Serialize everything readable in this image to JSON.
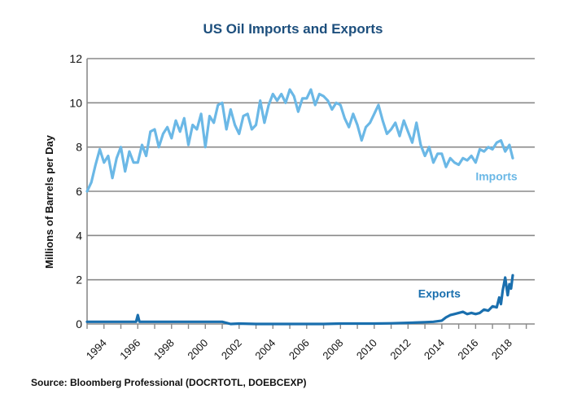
{
  "chart_data": {
    "type": "line",
    "title": "US Oil Imports and Exports",
    "xlabel": "",
    "ylabel": "Millions of Barrels per Day",
    "xlim": [
      1993.0,
      2019.5
    ],
    "ylim": [
      0,
      12
    ],
    "yticks": [
      0,
      2,
      4,
      6,
      8,
      10,
      12
    ],
    "xticks": [
      "1994",
      "1996",
      "1998",
      "2000",
      "2002",
      "2004",
      "2006",
      "2008",
      "2010",
      "2012",
      "2014",
      "2016",
      "2018"
    ],
    "grid": true,
    "series": [
      {
        "name": "Imports",
        "color": "#6bb8e6",
        "x": [
          1993.0,
          1993.25,
          1993.5,
          1993.75,
          1994.0,
          1994.25,
          1994.5,
          1994.75,
          1995.0,
          1995.25,
          1995.5,
          1995.75,
          1996.0,
          1996.25,
          1996.5,
          1996.75,
          1997.0,
          1997.25,
          1997.5,
          1997.75,
          1998.0,
          1998.25,
          1998.5,
          1998.75,
          1999.0,
          1999.25,
          1999.5,
          1999.75,
          2000.0,
          2000.25,
          2000.5,
          2000.75,
          2001.0,
          2001.25,
          2001.5,
          2001.75,
          2002.0,
          2002.25,
          2002.5,
          2002.75,
          2003.0,
          2003.25,
          2003.5,
          2003.75,
          2004.0,
          2004.25,
          2004.5,
          2004.75,
          2005.0,
          2005.25,
          2005.5,
          2005.75,
          2006.0,
          2006.25,
          2006.5,
          2006.75,
          2007.0,
          2007.25,
          2007.5,
          2007.75,
          2008.0,
          2008.25,
          2008.5,
          2008.75,
          2009.0,
          2009.25,
          2009.5,
          2009.75,
          2010.0,
          2010.25,
          2010.5,
          2010.75,
          2011.0,
          2011.25,
          2011.5,
          2011.75,
          2012.0,
          2012.25,
          2012.5,
          2012.75,
          2013.0,
          2013.25,
          2013.5,
          2013.75,
          2014.0,
          2014.25,
          2014.5,
          2014.75,
          2015.0,
          2015.25,
          2015.5,
          2015.75,
          2016.0,
          2016.25,
          2016.5,
          2016.75,
          2017.0,
          2017.25,
          2017.5,
          2017.75,
          2018.0,
          2018.2
        ],
        "values": [
          6.0,
          6.4,
          7.2,
          7.9,
          7.3,
          7.6,
          6.6,
          7.5,
          8.0,
          6.9,
          7.8,
          7.3,
          7.3,
          8.1,
          7.6,
          8.7,
          8.8,
          8.0,
          8.6,
          8.9,
          8.4,
          9.2,
          8.7,
          9.3,
          8.1,
          9.0,
          8.8,
          9.5,
          8.0,
          9.4,
          9.1,
          9.9,
          10.0,
          8.8,
          9.7,
          9.0,
          8.6,
          9.4,
          9.5,
          8.8,
          9.0,
          10.1,
          9.1,
          9.9,
          10.4,
          10.1,
          10.4,
          10.0,
          10.6,
          10.3,
          9.6,
          10.2,
          10.2,
          10.6,
          9.9,
          10.4,
          10.3,
          10.1,
          9.7,
          10.0,
          9.9,
          9.3,
          8.9,
          9.5,
          9.0,
          8.3,
          8.9,
          9.1,
          9.5,
          9.9,
          9.2,
          8.6,
          8.8,
          9.1,
          8.5,
          9.2,
          8.7,
          8.2,
          9.1,
          8.1,
          7.6,
          8.0,
          7.3,
          7.7,
          7.7,
          7.1,
          7.5,
          7.3,
          7.2,
          7.5,
          7.4,
          7.6,
          7.3,
          7.9,
          7.8,
          8.0,
          7.9,
          8.2,
          8.3,
          7.8,
          8.1,
          7.5
        ]
      },
      {
        "name": "Exports",
        "color": "#1a6fae",
        "x": [
          1993.0,
          1993.5,
          1994.0,
          1994.5,
          1995.0,
          1995.5,
          1995.9,
          1996.0,
          1996.1,
          1996.5,
          1997.0,
          1997.5,
          1998.0,
          1998.5,
          1999.0,
          1999.5,
          2000.0,
          2000.5,
          2001.0,
          2001.5,
          2002.0,
          2003.0,
          2004.0,
          2005.0,
          2006.0,
          2007.0,
          2008.0,
          2009.0,
          2010.0,
          2011.0,
          2012.0,
          2013.0,
          2013.5,
          2014.0,
          2014.25,
          2014.5,
          2014.75,
          2015.0,
          2015.25,
          2015.5,
          2015.75,
          2016.0,
          2016.25,
          2016.5,
          2016.75,
          2017.0,
          2017.25,
          2017.4,
          2017.5,
          2017.6,
          2017.75,
          2017.9,
          2018.0,
          2018.1,
          2018.2
        ],
        "values": [
          0.1,
          0.1,
          0.1,
          0.1,
          0.1,
          0.1,
          0.1,
          0.4,
          0.1,
          0.1,
          0.1,
          0.1,
          0.1,
          0.1,
          0.1,
          0.1,
          0.1,
          0.1,
          0.1,
          0.0,
          0.02,
          0.0,
          0.0,
          0.0,
          0.0,
          0.0,
          0.02,
          0.02,
          0.02,
          0.03,
          0.05,
          0.08,
          0.1,
          0.15,
          0.3,
          0.4,
          0.45,
          0.5,
          0.55,
          0.45,
          0.5,
          0.45,
          0.5,
          0.65,
          0.6,
          0.8,
          0.75,
          1.2,
          0.9,
          1.5,
          2.1,
          1.3,
          1.8,
          1.6,
          2.2
        ]
      }
    ],
    "annotations": [
      {
        "text": "Imports",
        "x": 2016.0,
        "y": 6.5
      },
      {
        "text": "Exports",
        "x": 2012.6,
        "y": 1.2
      }
    ],
    "source": "Source:  Bloomberg Professional (DOCRTOTL, DOEBCEXP)"
  }
}
